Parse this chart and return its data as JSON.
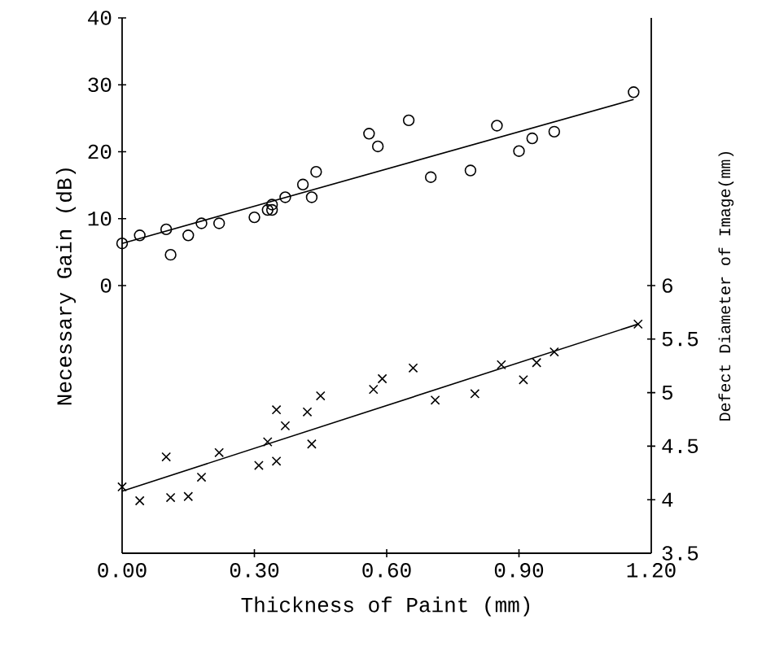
{
  "chart_data": {
    "type": "scatter",
    "xlabel": "Thickness of Paint (mm)",
    "ylabel": "Necessary Gain (dB)",
    "y2label": "Defect Diameter of Image(mm)",
    "xlim": [
      0,
      1.2
    ],
    "ylim": [
      -40,
      40
    ],
    "y2lim": [
      3.5,
      8.5
    ],
    "xticks": [
      {
        "value": 0,
        "label": "0.00"
      },
      {
        "value": 0.3,
        "label": "0.30"
      },
      {
        "value": 0.6,
        "label": "0.60"
      },
      {
        "value": 0.9,
        "label": "0.90"
      },
      {
        "value": 1.2,
        "label": "1.20"
      }
    ],
    "yticks": [
      0,
      10,
      20,
      30,
      40
    ],
    "y2ticks": [
      3.5,
      4,
      4.5,
      5,
      5.5,
      6
    ],
    "series": [
      {
        "axis": "y",
        "marker": "circle",
        "color": "#000000",
        "x": [
          0.0,
          0.04,
          0.1,
          0.11,
          0.15,
          0.18,
          0.22,
          0.3,
          0.33,
          0.34,
          0.34,
          0.37,
          0.41,
          0.43,
          0.44,
          0.56,
          0.58,
          0.65,
          0.7,
          0.79,
          0.85,
          0.9,
          0.93,
          0.98,
          1.16
        ],
        "values": [
          6.3,
          7.5,
          8.4,
          4.6,
          7.5,
          9.3,
          9.3,
          10.2,
          11.3,
          12.1,
          11.3,
          13.2,
          15.1,
          13.2,
          17.0,
          22.7,
          20.8,
          24.7,
          16.2,
          17.2,
          23.9,
          20.1,
          22.0,
          23.0,
          28.9
        ]
      },
      {
        "type": "line",
        "axis": "y",
        "marker": "none",
        "color": "#000000",
        "x": [
          0.0,
          1.16
        ],
        "values": [
          6.3,
          27.8
        ]
      },
      {
        "axis": "y2",
        "marker": "cross",
        "color": "#000000",
        "x": [
          0.0,
          0.04,
          0.1,
          0.11,
          0.15,
          0.18,
          0.22,
          0.31,
          0.33,
          0.35,
          0.35,
          0.37,
          0.42,
          0.43,
          0.45,
          0.57,
          0.59,
          0.66,
          0.71,
          0.8,
          0.86,
          0.91,
          0.94,
          0.98,
          1.17
        ],
        "values": [
          4.12,
          3.99,
          4.4,
          4.02,
          4.03,
          4.21,
          4.44,
          4.32,
          4.54,
          4.36,
          4.84,
          4.69,
          4.82,
          4.52,
          4.97,
          5.03,
          5.13,
          5.23,
          4.93,
          4.99,
          5.26,
          5.12,
          5.28,
          5.38,
          5.64
        ]
      },
      {
        "type": "line",
        "axis": "y2",
        "marker": "none",
        "color": "#000000",
        "x": [
          0.0,
          1.17
        ],
        "values": [
          4.08,
          5.64
        ]
      }
    ]
  }
}
